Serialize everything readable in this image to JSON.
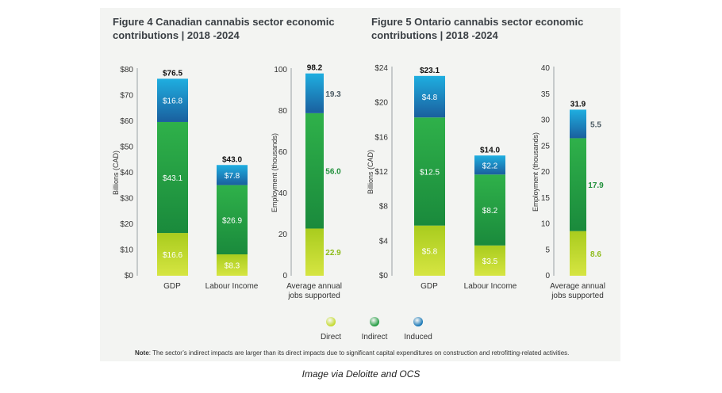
{
  "figure4_title": "Figure 4 Canadian cannabis sector economic contributions | 2018 -2024",
  "figure5_title": "Figure 5 Ontario cannabis sector economic contributions | 2018 -2024",
  "legend": [
    {
      "label": "Direct",
      "color": "#c3d92c"
    },
    {
      "label": "Indirect",
      "color": "#1e9a3e"
    },
    {
      "label": "Induced",
      "color": "#1676b6"
    }
  ],
  "note_label": "Note",
  "note_text": ": The sector’s indirect impacts are larger than its direct impacts due to significant capital expenditures on construction and retrofitting-related activities.",
  "caption": "Image via Deloitte and OCS",
  "chart_data": [
    {
      "type": "bar",
      "stacked": true,
      "ylabel": "Billions (CAD)",
      "ylim": [
        0,
        80
      ],
      "yticks": [
        "$0",
        "$10",
        "$20",
        "$30",
        "$40",
        "$50",
        "$60",
        "$70",
        "$80"
      ],
      "categories": [
        "GDP",
        "Labour Income"
      ],
      "series": [
        {
          "name": "Direct",
          "values": [
            16.6,
            8.3
          ],
          "labels": [
            "$16.6",
            "$8.3"
          ]
        },
        {
          "name": "Indirect",
          "values": [
            43.1,
            26.9
          ],
          "labels": [
            "$43.1",
            "$26.9"
          ]
        },
        {
          "name": "Induced",
          "values": [
            16.8,
            7.8
          ],
          "labels": [
            "$16.8",
            "$7.8"
          ]
        }
      ],
      "totals": [
        "$76.5",
        "$43.0"
      ]
    },
    {
      "type": "bar",
      "stacked": true,
      "ylabel": "Employment (thousands)",
      "ylim": [
        0,
        100
      ],
      "yticks": [
        "0",
        "20",
        "40",
        "60",
        "80",
        "100"
      ],
      "categories": [
        "Average annual jobs supported"
      ],
      "series": [
        {
          "name": "Direct",
          "values": [
            22.9
          ],
          "labels": [
            "22.9"
          ]
        },
        {
          "name": "Indirect",
          "values": [
            56.0
          ],
          "labels": [
            "56.0"
          ]
        },
        {
          "name": "Induced",
          "values": [
            19.3
          ],
          "labels": [
            "19.3"
          ]
        }
      ],
      "totals": [
        "98.2"
      ]
    },
    {
      "type": "bar",
      "stacked": true,
      "ylabel": "Billions (CAD)",
      "ylim": [
        0,
        24
      ],
      "yticks": [
        "$0",
        "$4",
        "$8",
        "$12",
        "$16",
        "$20",
        "$24"
      ],
      "categories": [
        "GDP",
        "Labour Income"
      ],
      "series": [
        {
          "name": "Direct",
          "values": [
            5.8,
            3.5
          ],
          "labels": [
            "$5.8",
            "$3.5"
          ]
        },
        {
          "name": "Indirect",
          "values": [
            12.5,
            8.2
          ],
          "labels": [
            "$12.5",
            "$8.2"
          ]
        },
        {
          "name": "Induced",
          "values": [
            4.8,
            2.2
          ],
          "labels": [
            "$4.8",
            "$2.2"
          ]
        }
      ],
      "totals": [
        "$23.1",
        "$14.0"
      ]
    },
    {
      "type": "bar",
      "stacked": true,
      "ylabel": "Employment (thousands)",
      "ylim": [
        0,
        40
      ],
      "yticks": [
        "0",
        "5",
        "10",
        "15",
        "20",
        "25",
        "30",
        "35",
        "40"
      ],
      "categories": [
        "Average annual jobs supported"
      ],
      "series": [
        {
          "name": "Direct",
          "values": [
            8.6
          ],
          "labels": [
            "8.6"
          ]
        },
        {
          "name": "Indirect",
          "values": [
            17.9
          ],
          "labels": [
            "17.9"
          ]
        },
        {
          "name": "Induced",
          "values": [
            5.5
          ],
          "labels": [
            "5.5"
          ]
        }
      ],
      "totals": [
        "31.9"
      ]
    }
  ]
}
